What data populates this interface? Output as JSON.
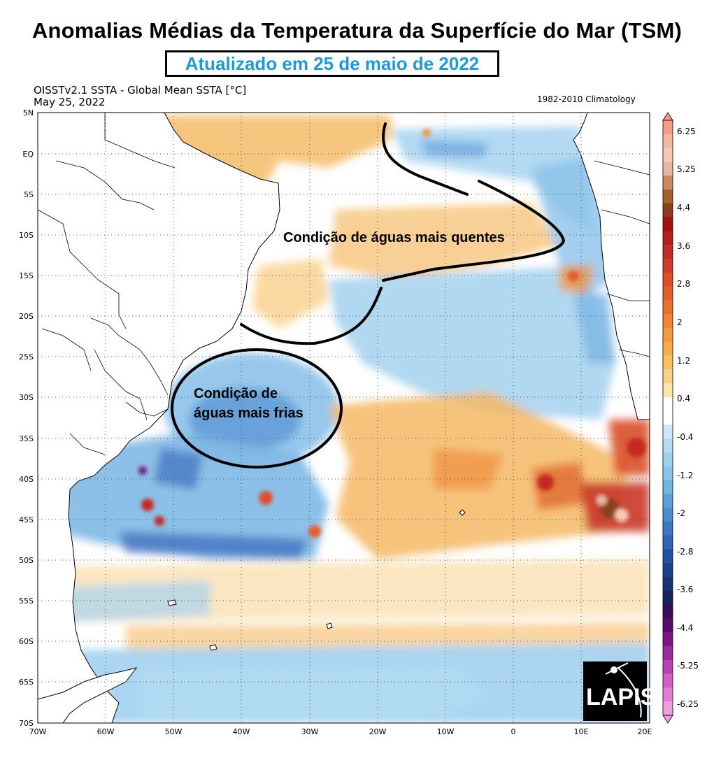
{
  "header": {
    "title": "Anomalias Médias da Temperatura da Superfície do Mar (TSM)",
    "updated": "Atualizado em 25 de maio de 2022",
    "dataset": "OISSTv2.1 SSTA - Global Mean SSTA [°C]",
    "date": "May 25, 2022",
    "climatology": "1982-2010 Climatology"
  },
  "map": {
    "lat_labels": [
      "5N",
      "EQ",
      "5S",
      "10S",
      "15S",
      "20S",
      "25S",
      "30S",
      "35S",
      "40S",
      "45S",
      "50S",
      "55S",
      "60S",
      "65S",
      "70S"
    ],
    "lon_labels": [
      "70W",
      "60W",
      "50W",
      "40W",
      "30W",
      "20W",
      "10W",
      "0",
      "10E",
      "20E"
    ],
    "annotations": {
      "warm": "Condição de águas mais quentes",
      "cold_line1": "Condição de",
      "cold_line2": "águas mais frias"
    },
    "logo_text": "LAPIS"
  },
  "colorbar": {
    "labels": [
      "6.25",
      "5.25",
      "4.4",
      "3.6",
      "2.8",
      "2",
      "1.2",
      "0.4",
      "-0.4",
      "-1.2",
      "-2",
      "-2.8",
      "-3.6",
      "-4.4",
      "-5.25",
      "-6.25"
    ],
    "colors": [
      "#f29b85",
      "#f6b7a3",
      "#f7c9b4",
      "#e6b7a3",
      "#c98a63",
      "#a4622f",
      "#8a3f1a",
      "#a11212",
      "#b51f1f",
      "#c42b24",
      "#d33a28",
      "#dd4d2a",
      "#e65e2c",
      "#ec702f",
      "#f08534",
      "#f29a3d",
      "#f5ad4a",
      "#f7c062",
      "#f9d283",
      "#fbe6a8",
      "#ffffff",
      "#ffffff",
      "#cfe8f7",
      "#b7dcf2",
      "#9fd0ee",
      "#8ac4ea",
      "#74b4e3",
      "#5f9fd9",
      "#4d8ccf",
      "#3d79c3",
      "#2f65b3",
      "#24529f",
      "#1c4189",
      "#173373",
      "#1a1f5e",
      "#3a0d5a",
      "#5a0b6a",
      "#7c1484",
      "#9c2a9c",
      "#b642b2",
      "#cf5fc6",
      "#e07fd6",
      "#ee9fe4"
    ]
  },
  "legend_colors": {
    "land": "#ffffff",
    "coast": "#000000",
    "warm": "#f5b65e",
    "cold": "#9fd0ee",
    "grid": "#555555"
  }
}
